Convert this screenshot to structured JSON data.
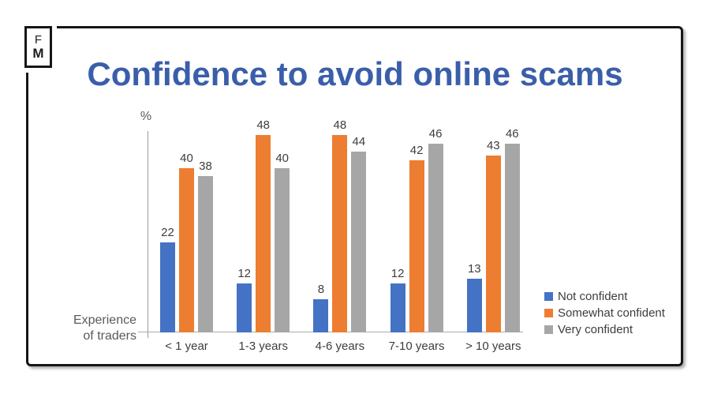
{
  "logo": {
    "line1": "F",
    "line2": "M"
  },
  "axis": {
    "unit_label": "%",
    "x_axis_label_line1": "Experience",
    "x_axis_label_line2": "of traders"
  },
  "chart_data": {
    "type": "bar",
    "title": "Confidence to avoid online scams",
    "title_color": "#3a5ea9",
    "ylabel": "%",
    "xlabel": "Experience of traders",
    "categories": [
      "< 1 year",
      "1-3 years",
      "4-6 years",
      "7-10 years",
      "> 10 years"
    ],
    "series": [
      {
        "name": "Not confident",
        "color": "#4472c4",
        "values": [
          22,
          12,
          8,
          12,
          13
        ]
      },
      {
        "name": "Somewhat confident",
        "color": "#ed7d31",
        "values": [
          40,
          48,
          48,
          42,
          43
        ]
      },
      {
        "name": "Very confident",
        "color": "#a6a6a6",
        "values": [
          38,
          40,
          44,
          46,
          46
        ]
      }
    ],
    "data_labels": true,
    "legend_position": "right",
    "ylim": [
      0,
      50
    ],
    "grid": false
  }
}
